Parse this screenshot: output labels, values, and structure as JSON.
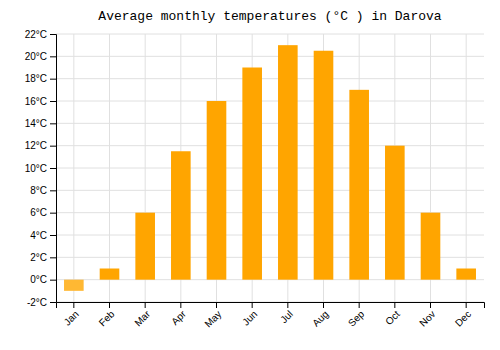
{
  "chart_data": {
    "type": "bar",
    "title": "Average monthly temperatures (°C ) in Darova",
    "categories": [
      "Jan",
      "Feb",
      "Mar",
      "Apr",
      "May",
      "Jun",
      "Jul",
      "Aug",
      "Sep",
      "Oct",
      "Nov",
      "Dec"
    ],
    "values": [
      -1,
      1,
      6,
      11.5,
      16,
      19,
      21,
      20.5,
      17,
      12,
      6,
      1
    ],
    "colors": [
      "#FFB833",
      "#FFA500",
      "#FFA500",
      "#FFA500",
      "#FFA500",
      "#FFA500",
      "#FFA500",
      "#FFA500",
      "#FFA500",
      "#FFA500",
      "#FFA500",
      "#FFA500"
    ],
    "ylim": [
      -2,
      22
    ],
    "yticks": [
      {
        "value": -2,
        "label": "-2°C"
      },
      {
        "value": 0,
        "label": "0°C"
      },
      {
        "value": 2,
        "label": "2°C"
      },
      {
        "value": 4,
        "label": "4°C"
      },
      {
        "value": 6,
        "label": "6°C"
      },
      {
        "value": 8,
        "label": "8°C"
      },
      {
        "value": 10,
        "label": "10°C"
      },
      {
        "value": 12,
        "label": "12°C"
      },
      {
        "value": 14,
        "label": "14°C"
      },
      {
        "value": 16,
        "label": "16°C"
      },
      {
        "value": 18,
        "label": "18°C"
      },
      {
        "value": 20,
        "label": "20°C"
      },
      {
        "value": 22,
        "label": "22°C"
      }
    ],
    "grid": true
  }
}
